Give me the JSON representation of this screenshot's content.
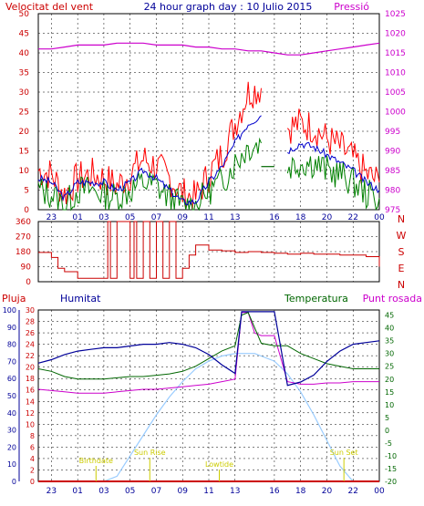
{
  "header": {
    "left_title": "Velocitat del vent",
    "center_title": "24 hour graph day : 10 Julio 2015",
    "right_title": "Pressió"
  },
  "colors": {
    "wind_max": "#ff0000",
    "wind_avg": "#0000cc",
    "wind_gust": "#008000",
    "pressure": "#cc00cc",
    "direction": "#cc0000",
    "humidity": "#000099",
    "temperature": "#006600",
    "dewpoint": "#cc00cc",
    "rain": "#cc0000",
    "solar": "#99ccff",
    "grid": "#000000",
    "tick_left_wind": "#cc0000",
    "tick_right_pressure": "#cc00cc",
    "tick_left_humidity": "#000099",
    "tick_right_temp": "#006600",
    "annotation": "#cccc00"
  },
  "x_ticks": [
    "23",
    "01",
    "03",
    "05",
    "07",
    "09",
    "11",
    "13",
    "16",
    "18",
    "20",
    "22",
    "00"
  ],
  "x_ticks_bottom": [
    "23",
    "01",
    "03",
    "05",
    "07",
    "09",
    "11",
    "13",
    "16",
    "18",
    "20",
    "22",
    "00"
  ],
  "chart_data": [
    {
      "type": "line",
      "name": "wind",
      "y_left": {
        "ticks": [
          0,
          5,
          10,
          15,
          20,
          25,
          30,
          35,
          40,
          45,
          50
        ],
        "ylim": [
          0,
          50
        ]
      },
      "y_right": {
        "ticks": [
          975,
          980,
          985,
          990,
          995,
          1000,
          1005,
          1010,
          1015,
          1020,
          1025
        ],
        "ylim": [
          975,
          1025
        ]
      },
      "x_hours": [
        22,
        23,
        0,
        1,
        2,
        3,
        4,
        5,
        6,
        7,
        8,
        9,
        10,
        11,
        12,
        13,
        14,
        15,
        16,
        17,
        18,
        19,
        20,
        21,
        22,
        23,
        24
      ],
      "series": [
        {
          "key": "max",
          "values": [
            10,
            9,
            4,
            8,
            9,
            8,
            6,
            9,
            13,
            11,
            8,
            4,
            3,
            9,
            14,
            22,
            30,
            31,
            null,
            21,
            22,
            21,
            18,
            16,
            13,
            9,
            7
          ]
        },
        {
          "key": "avg",
          "values": [
            8,
            7,
            3,
            7,
            7,
            7,
            5,
            7,
            10,
            8,
            5,
            2,
            2,
            7,
            11,
            17,
            22,
            24,
            null,
            15,
            17,
            16,
            14,
            12,
            10,
            7,
            5
          ]
        },
        {
          "key": "gust",
          "values": [
            5,
            4,
            1,
            5,
            5,
            4,
            3,
            5,
            7,
            6,
            3,
            1,
            1,
            5,
            7,
            12,
            16,
            17,
            null,
            11,
            12,
            12,
            10,
            9,
            7,
            4,
            3
          ]
        },
        {
          "key": "plateau",
          "values": [
            null,
            null,
            null,
            null,
            null,
            null,
            null,
            null,
            null,
            null,
            null,
            null,
            null,
            null,
            null,
            null,
            null,
            11,
            11,
            null,
            null,
            null,
            null,
            null,
            null,
            null,
            null
          ]
        },
        {
          "key": "pressure",
          "values": [
            1016,
            1016,
            1016.5,
            1017,
            1017,
            1017,
            1017.5,
            1017.5,
            1017.5,
            1017,
            1017,
            1017,
            1016.5,
            1016.5,
            1016,
            1016,
            1015.5,
            1015.5,
            1015,
            1014.5,
            1014.5,
            1015,
            1015.5,
            1016,
            1016.5,
            1017,
            1017.5
          ]
        }
      ]
    },
    {
      "type": "line",
      "name": "direction",
      "y_left": {
        "ticks": [
          0,
          90,
          180,
          270,
          360
        ],
        "ylim": [
          0,
          360
        ]
      },
      "y_right_labels": [
        "N",
        "W",
        "S",
        "E",
        "N"
      ],
      "x_hours": [
        22,
        22.5,
        23,
        23.5,
        0,
        1,
        2,
        3,
        3.3,
        3.5,
        4,
        4.5,
        5,
        5.3,
        5.5,
        6,
        6.5,
        7,
        7.5,
        8,
        8.5,
        9,
        9.5,
        10,
        11,
        12,
        13,
        14,
        15,
        16,
        17,
        18,
        19,
        20,
        21,
        22,
        23,
        24
      ],
      "values": [
        175,
        175,
        145,
        80,
        60,
        20,
        20,
        20,
        360,
        20,
        360,
        360,
        20,
        360,
        20,
        360,
        20,
        360,
        20,
        360,
        20,
        80,
        160,
        220,
        190,
        185,
        175,
        180,
        175,
        170,
        165,
        170,
        165,
        165,
        160,
        160,
        150,
        90
      ]
    },
    {
      "type": "line",
      "name": "climate",
      "y_left": {
        "ticks": [
          0,
          10,
          20,
          30,
          40,
          50,
          60,
          70,
          80,
          90,
          100
        ],
        "ylim": [
          0,
          100
        ]
      },
      "y_left2": {
        "ticks": [
          0,
          2,
          4,
          6,
          8,
          10,
          12,
          14,
          16,
          18,
          20,
          22,
          24,
          26,
          28,
          30
        ],
        "ylim": [
          0,
          30
        ]
      },
      "y_right": {
        "ticks": [
          -20,
          -15,
          -10,
          -5,
          0,
          5,
          10,
          15,
          20,
          25,
          30,
          35,
          40,
          45
        ],
        "ylim": [
          -20,
          47
        ]
      },
      "x_hours": [
        22,
        23,
        0,
        1,
        2,
        3,
        4,
        5,
        6,
        7,
        8,
        9,
        10,
        11,
        12,
        13,
        13.5,
        14,
        14.5,
        15,
        16,
        17,
        18,
        19,
        20,
        21,
        22,
        23,
        24
      ],
      "series": [
        {
          "key": "humidity",
          "values": [
            69,
            71,
            74,
            76,
            77,
            78,
            78,
            79,
            80,
            80,
            81,
            80,
            78,
            74,
            68,
            63,
            99,
            99,
            99,
            99,
            99,
            56,
            58,
            62,
            70,
            76,
            80,
            81,
            82
          ]
        },
        {
          "key": "temperature",
          "values": [
            24,
            23,
            21,
            20,
            20,
            20,
            20.5,
            21,
            21,
            21.5,
            22,
            23,
            25,
            28,
            31,
            33,
            45,
            46,
            40,
            34,
            33,
            33,
            30,
            28,
            26,
            25,
            24,
            24,
            24
          ]
        },
        {
          "key": "dewpoint",
          "values": [
            16,
            15.5,
            15,
            14.5,
            14.5,
            14.5,
            15,
            15.5,
            16,
            16,
            16.5,
            17,
            17.5,
            18,
            19,
            20,
            46,
            46,
            38,
            37,
            37,
            19,
            18,
            18,
            18.5,
            18.5,
            19,
            19,
            19
          ]
        },
        {
          "key": "solar",
          "values": [
            -20,
            -20,
            -20,
            -20,
            -20,
            -20,
            -18,
            -10,
            -2,
            6,
            13,
            19,
            24,
            27,
            29,
            30,
            30,
            30,
            30,
            29,
            27,
            22,
            15,
            6,
            -4,
            -14,
            -20,
            -20,
            -20
          ]
        },
        {
          "key": "rain",
          "values": [
            0,
            0,
            0,
            0,
            0,
            0,
            0,
            0,
            0,
            0,
            0,
            0,
            0,
            0,
            0,
            0,
            0,
            0,
            0,
            0,
            0,
            0,
            0,
            0,
            0,
            0,
            0,
            0,
            0
          ]
        }
      ],
      "annotations": [
        {
          "text": "Birthdate",
          "x_hour": 2.4
        },
        {
          "text": "Sun Rise",
          "x_hour": 6.5
        },
        {
          "text": "Lowtide",
          "x_hour": 11.8
        },
        {
          "text": "Sun Set",
          "x_hour": 21.3
        }
      ],
      "labels_top": {
        "rain": "Pluja",
        "humidity": "Humitat",
        "temperature": "Temperatura",
        "dewpoint": "Punt rosada"
      },
      "bottom_tick_overlays": [
        "Lowtide",
        "Sun Set"
      ]
    }
  ]
}
